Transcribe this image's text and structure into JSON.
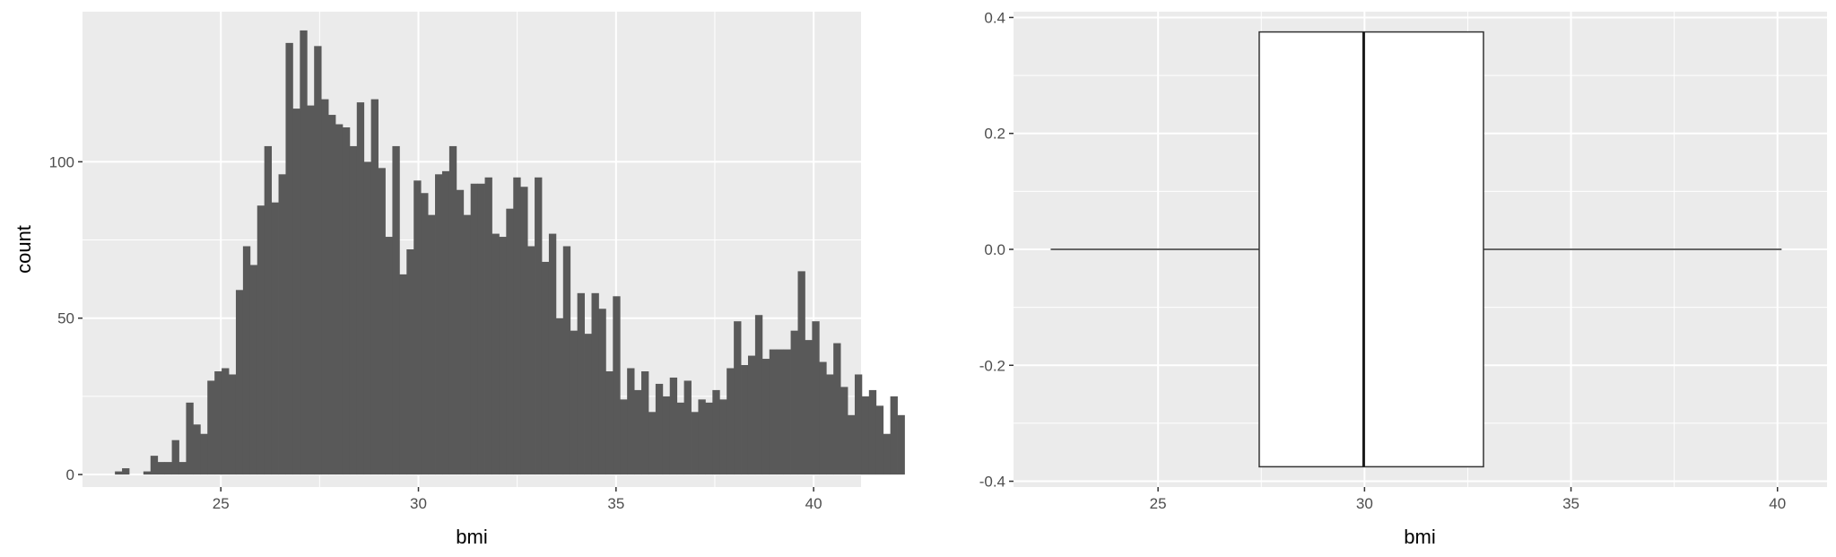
{
  "chart_data": [
    {
      "type": "bar",
      "subtype": "histogram",
      "xlabel": "bmi",
      "ylabel": "count",
      "xlim": [
        21.5,
        41.2
      ],
      "ylim": [
        -4,
        148
      ],
      "x_ticks": [
        25,
        30,
        35,
        40
      ],
      "y_ticks": [
        0,
        50,
        100
      ],
      "x_tick_labels": [
        "25",
        "30",
        "35",
        "40"
      ],
      "y_tick_labels": [
        "0",
        "50",
        "100"
      ],
      "bar_color": "#595959",
      "panel_background": "#ebebeb",
      "grid": true,
      "bins": {
        "start": 22.32,
        "width": 0.18,
        "counts": [
          1,
          2,
          0,
          0,
          1,
          6,
          4,
          4,
          11,
          4,
          23,
          16,
          13,
          30,
          33,
          34,
          32,
          59,
          73,
          67,
          86,
          105,
          87,
          96,
          138,
          117,
          142,
          118,
          137,
          120,
          115,
          112,
          111,
          105,
          119,
          100,
          120,
          98,
          76,
          105,
          64,
          72,
          94,
          90,
          83,
          96,
          97,
          105,
          91,
          83,
          93,
          93,
          95,
          77,
          76,
          85,
          95,
          92,
          73,
          95,
          68,
          77,
          50,
          73,
          46,
          58,
          45,
          58,
          53,
          33,
          57,
          24,
          34,
          27,
          33,
          20,
          29,
          25,
          31,
          23,
          30,
          20,
          24,
          23,
          27,
          24,
          34,
          49,
          35,
          38,
          51,
          37,
          40,
          40,
          40,
          46,
          65,
          43,
          49,
          36,
          32,
          42,
          28,
          19,
          32,
          25,
          27,
          22,
          13,
          25,
          19
        ]
      }
    },
    {
      "type": "box",
      "orientation": "horizontal",
      "xlabel": "bmi",
      "ylabel": "",
      "xlim": [
        21.5,
        41.2
      ],
      "ylim": [
        -0.41,
        0.41
      ],
      "x_ticks": [
        25,
        30,
        35,
        40
      ],
      "y_ticks": [
        -0.4,
        -0.2,
        0.0,
        0.2,
        0.4
      ],
      "x_tick_labels": [
        "25",
        "30",
        "35",
        "40"
      ],
      "y_tick_labels": [
        "-0.4",
        "-0.2",
        "0.0",
        "0.2",
        "0.4"
      ],
      "box_fill": "#ffffff",
      "panel_background": "#ebebeb",
      "grid": true,
      "box": {
        "min": 22.4,
        "q1": 27.45,
        "median": 29.98,
        "q3": 32.88,
        "max": 40.1,
        "box_half_height": 0.375
      }
    }
  ]
}
